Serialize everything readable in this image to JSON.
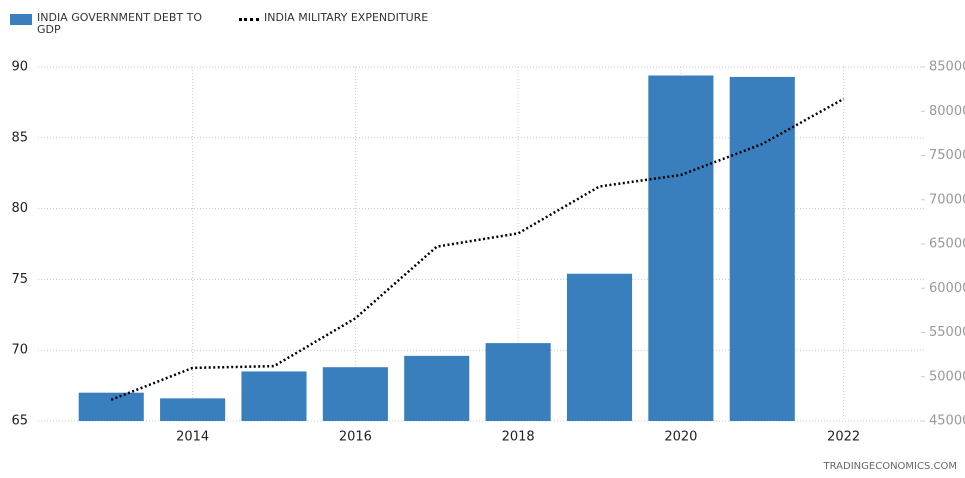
{
  "chart_data": {
    "type": "bar",
    "x": [
      2013,
      2014,
      2015,
      2016,
      2017,
      2018,
      2019,
      2020,
      2021,
      2022
    ],
    "series": [
      {
        "name": "INDIA GOVERNMENT DEBT TO GDP",
        "type": "bar",
        "color": "#3a7fbd",
        "values": [
          67.0,
          66.6,
          68.5,
          68.8,
          69.6,
          70.5,
          75.4,
          89.4,
          89.3,
          null
        ]
      },
      {
        "name": "INDIA MILITARY EXPENDITURE",
        "type": "line",
        "axis": "y2",
        "color": "#000000",
        "values": [
          47400,
          51000,
          51200,
          56600,
          64700,
          66200,
          71500,
          72800,
          76300,
          81400
        ]
      }
    ],
    "xlim": [
      2012.1,
      2023
    ],
    "xticks": [
      2014,
      2016,
      2018,
      2020,
      2022
    ],
    "ylim": [
      65,
      90
    ],
    "yticks": [
      65,
      70,
      75,
      80,
      85,
      90
    ],
    "y2lim": [
      45000,
      85000
    ],
    "y2ticks": [
      45000,
      50000,
      55000,
      60000,
      65000,
      70000,
      75000,
      80000,
      85000
    ],
    "grid": true,
    "source": "TRADINGECONOMICS.COM"
  }
}
